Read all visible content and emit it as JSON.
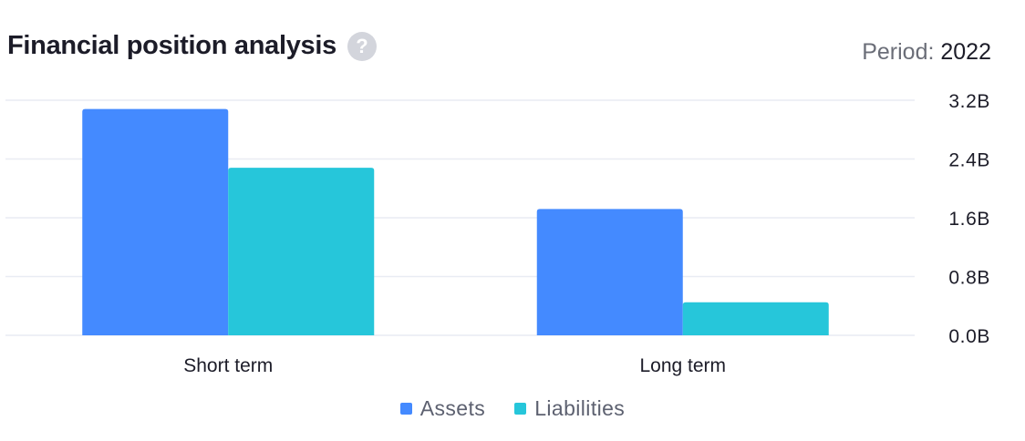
{
  "header": {
    "title": "Financial position analysis",
    "help_icon": "question-icon",
    "period_label": "Period:",
    "period_value": "2022"
  },
  "chart_data": {
    "type": "bar",
    "categories": [
      "Short term",
      "Long term"
    ],
    "series": [
      {
        "name": "Assets",
        "color": "#448aff",
        "values": [
          3.08,
          1.72
        ]
      },
      {
        "name": "Liabilities",
        "color": "#26c6da",
        "values": [
          2.28,
          0.45
        ]
      }
    ],
    "ylim": [
      0,
      3.2
    ],
    "yticks": [
      "0.0B",
      "0.8B",
      "1.6B",
      "2.4B",
      "3.2B"
    ],
    "ytick_values": [
      0,
      0.8,
      1.6,
      2.4,
      3.2
    ],
    "grid": true,
    "legend_position": "bottom",
    "xlabel": "",
    "ylabel": ""
  }
}
